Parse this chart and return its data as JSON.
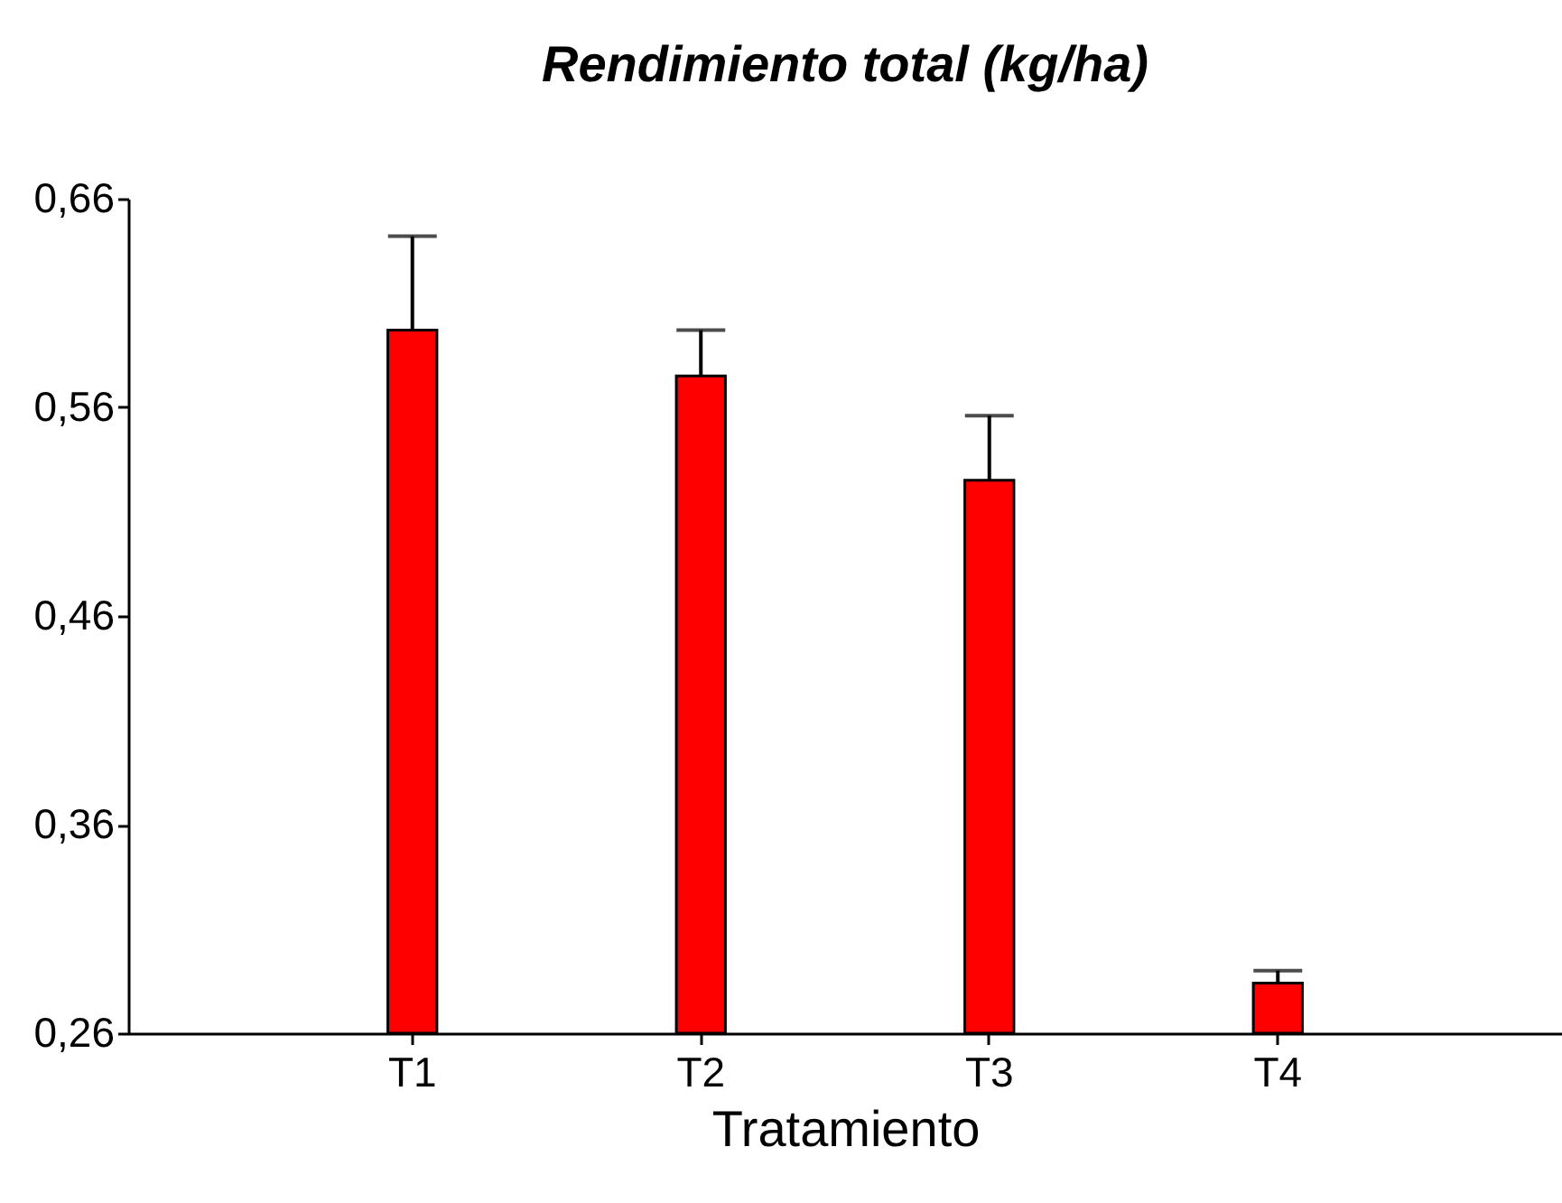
{
  "chart_data": {
    "type": "bar",
    "title": "Rendimiento total (kg/ha)",
    "xlabel": "Tratamiento",
    "categories": [
      "T1",
      "T2",
      "T3",
      "T4"
    ],
    "values": [
      0.597,
      0.575,
      0.525,
      0.284
    ],
    "color": "#ff0000",
    "errors": [
      [
        0.597,
        0.642
      ],
      [
        0.575,
        0.597
      ],
      [
        0.525,
        0.556
      ],
      [
        0.284,
        0.29
      ]
    ],
    "ylim": [
      0.26,
      0.66
    ],
    "yticks": [
      {
        "value": 0.26,
        "label": "0,26"
      },
      {
        "value": 0.36,
        "label": "0,36"
      },
      {
        "value": 0.46,
        "label": "0,46"
      },
      {
        "value": 0.56,
        "label": "0,56"
      },
      {
        "value": 0.66,
        "label": "0,66"
      }
    ],
    "grid": false
  }
}
